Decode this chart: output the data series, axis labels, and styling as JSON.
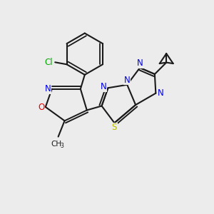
{
  "background_color": "#ececec",
  "bond_color": "#1a1a1a",
  "atom_colors": {
    "N": "#0000ee",
    "O": "#ee0000",
    "S": "#bbbb00",
    "Cl": "#00aa00",
    "C": "#1a1a1a"
  },
  "figsize": [
    3.0,
    3.0
  ],
  "dpi": 100
}
